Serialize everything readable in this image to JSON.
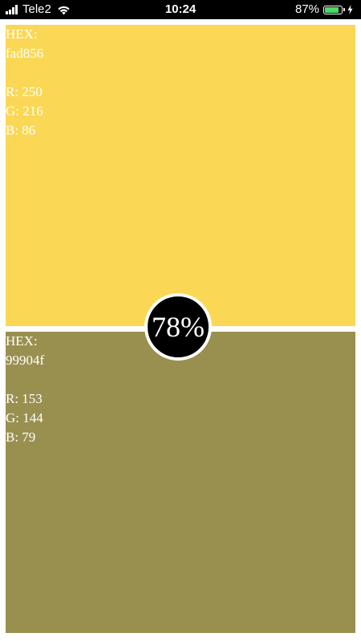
{
  "status_bar": {
    "carrier": "Tele2",
    "time": "10:24",
    "battery_percent": "87%",
    "battery_level": 0.87,
    "battery_color": "#4cd964",
    "icons": [
      "signal-icon",
      "wifi-icon",
      "battery-icon",
      "charging-icon"
    ]
  },
  "colors": [
    {
      "hex_label": "HEX:",
      "hex_value": "fad856",
      "r": "R: 250",
      "g": "G: 216",
      "b": "B: 86",
      "swatch": "#fad856"
    },
    {
      "hex_label": "HEX:",
      "hex_value": "99904f",
      "r": "R: 153",
      "g": "G: 144",
      "b": "B: 79",
      "swatch": "#99904f"
    }
  ],
  "percentage": "78%"
}
